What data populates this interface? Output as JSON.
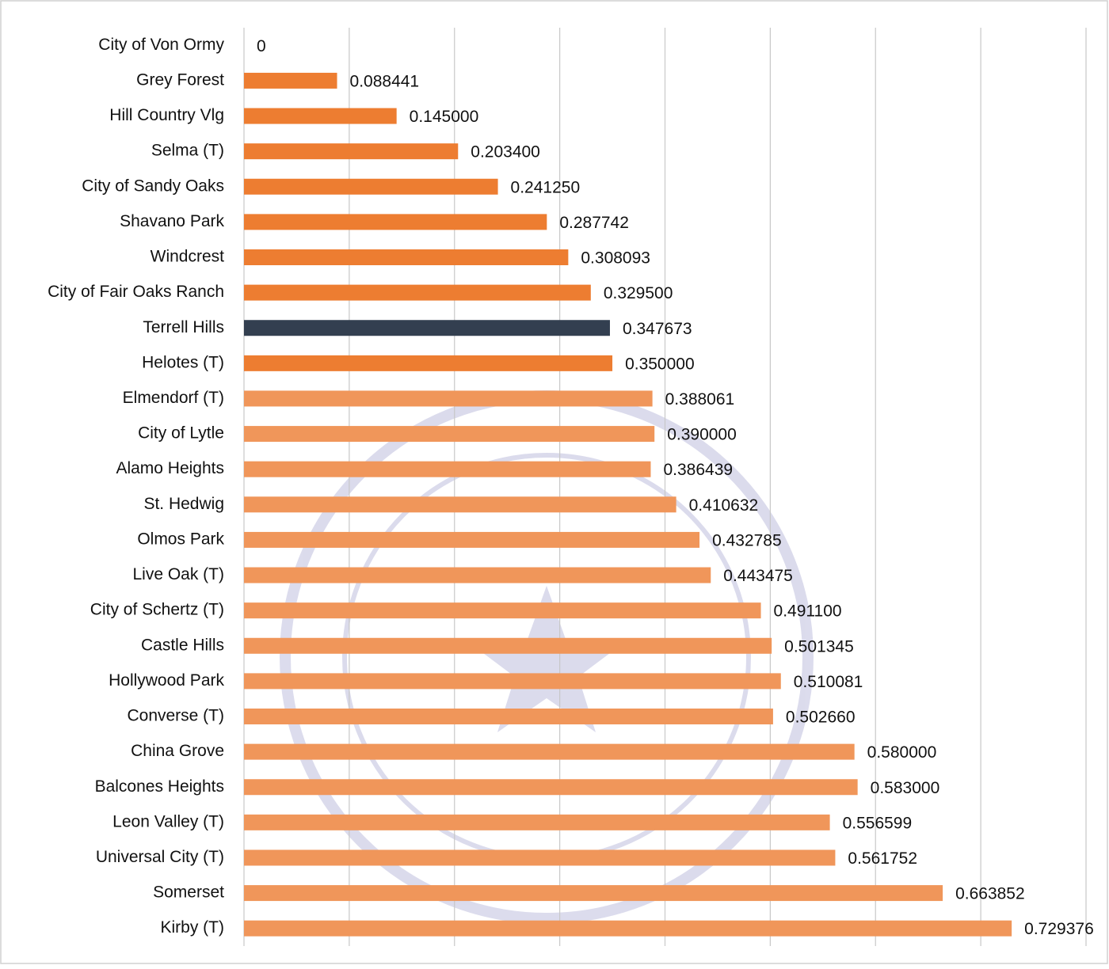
{
  "chart_data": {
    "type": "barh",
    "categories": [
      "City of Von Ormy",
      "Grey Forest",
      "Hill Country Vlg",
      "Selma (T)",
      "City of Sandy Oaks",
      "Shavano Park",
      "Windcrest",
      "City of Fair Oaks Ranch",
      "Terrell Hills",
      "Helotes (T)",
      "Elmendorf (T)",
      "City of Lytle",
      "Alamo Heights",
      "St. Hedwig",
      "Olmos Park",
      "Live Oak (T)",
      "City of Schertz (T)",
      "Castle Hills",
      "Hollywood Park",
      "Converse (T)",
      "China Grove",
      "Balcones Heights",
      "Leon Valley (T)",
      "Universal City (T)",
      "Somerset",
      "Kirby (T)"
    ],
    "values": [
      0,
      0.088441,
      0.145,
      0.2034,
      0.24125,
      0.287742,
      0.308093,
      0.3295,
      0.347673,
      0.35,
      0.388061,
      0.39,
      0.386439,
      0.410632,
      0.432785,
      0.443475,
      0.4911,
      0.501345,
      0.510081,
      0.50266,
      0.58,
      0.583,
      0.556599,
      0.561752,
      0.663852,
      0.729376
    ],
    "value_labels": [
      "0",
      "0.088441",
      "0.145000",
      "0.203400",
      "0.241250",
      "0.287742",
      "0.308093",
      "0.329500",
      "0.347673",
      "0.350000",
      "0.388061",
      "0.390000",
      "0.386439",
      "0.410632",
      "0.432785",
      "0.443475",
      "0.491100",
      "0.501345",
      "0.510081",
      "0.502660",
      "0.580000",
      "0.583000",
      "0.556599",
      "0.561752",
      "0.663852",
      "0.729376"
    ],
    "colors": [
      "#ed7d31",
      "#ed7d31",
      "#ed7d31",
      "#ed7d31",
      "#ed7d31",
      "#ed7d31",
      "#ed7d31",
      "#ed7d31",
      "#333f50",
      "#ed7d31",
      "#f0965a",
      "#f0965a",
      "#f0965a",
      "#f0965a",
      "#f0965a",
      "#f0965a",
      "#f0965a",
      "#f0965a",
      "#f0965a",
      "#f0965a",
      "#f0965a",
      "#f0965a",
      "#f0965a",
      "#f0965a",
      "#f0965a",
      "#f0965a"
    ],
    "xlim": [
      0,
      0.8
    ],
    "xticks": [
      0,
      0.1,
      0.2,
      0.3,
      0.4,
      0.5,
      0.6,
      0.7,
      0.8
    ],
    "grid": true
  }
}
